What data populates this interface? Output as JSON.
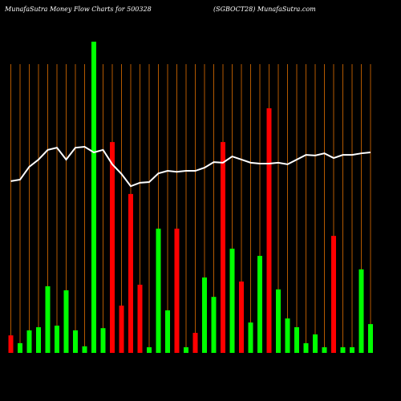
{
  "chart_data": {
    "type": "bar",
    "title": "MunafaSutra  Money Flow  Charts for 500328",
    "subtitle": "(SGBOCT28) MunafaSutra.com",
    "categories": [
      null,
      null,
      null,
      null,
      null,
      null,
      null,
      null,
      null,
      null,
      null,
      null,
      null,
      null,
      null,
      null,
      null,
      null,
      null,
      null,
      null,
      null,
      null,
      null,
      null,
      null,
      null,
      null,
      null,
      null,
      null,
      null,
      null,
      null,
      null,
      null,
      null,
      null,
      null,
      null
    ],
    "values": [
      5.6,
      3.1,
      7.2,
      8.2,
      21.3,
      8.7,
      20,
      7.2,
      2.1,
      99.5,
      7.9,
      67.4,
      15.1,
      50.8,
      21.8,
      1.8,
      39.7,
      13.6,
      39.7,
      1.8,
      6.4,
      24.1,
      17.9,
      67.4,
      33.3,
      22.8,
      9.7,
      31,
      78.2,
      20.3,
      11,
      8.2,
      3.1,
      5.9,
      1.8,
      37.4,
      1.8,
      1.8,
      26.7,
      9.2
    ],
    "colors": [
      "#ff0000",
      "#00ff00",
      "#00ff00",
      "#00ff00",
      "#00ff00",
      "#00ff00",
      "#00ff00",
      "#00ff00",
      "#00ff00",
      "#00ff00",
      "#00ff00",
      "#ff0000",
      "#ff0000",
      "#ff0000",
      "#ff0000",
      "#00ff00",
      "#00ff00",
      "#00ff00",
      "#ff0000",
      "#00ff00",
      "#ff0000",
      "#00ff00",
      "#00ff00",
      "#ff0000",
      "#00ff00",
      "#ff0000",
      "#00ff00",
      "#00ff00",
      "#ff0000",
      "#00ff00",
      "#00ff00",
      "#00ff00",
      "#00ff00",
      "#00ff00",
      "#00ff00",
      "#ff0000",
      "#00ff00",
      "#00ff00",
      "#00ff00",
      "#00ff00"
    ],
    "line_values": [
      54.9,
      55.4,
      59.5,
      61.8,
      64.9,
      65.6,
      61.8,
      65.6,
      65.9,
      64.1,
      64.9,
      60.3,
      57.2,
      53.3,
      54.4,
      54.6,
      57.4,
      58.2,
      57.9,
      58.2,
      58.2,
      59.2,
      61,
      60.8,
      62.8,
      61.8,
      60.8,
      60.5,
      60.5,
      60.8,
      60.3,
      61.8,
      63.3,
      63.1,
      63.8,
      62.3,
      63.3,
      63.3,
      63.8,
      64.1
    ],
    "line_color": "#ffffff",
    "grid_color": "#b35900",
    "ylim": [
      0,
      100
    ]
  }
}
